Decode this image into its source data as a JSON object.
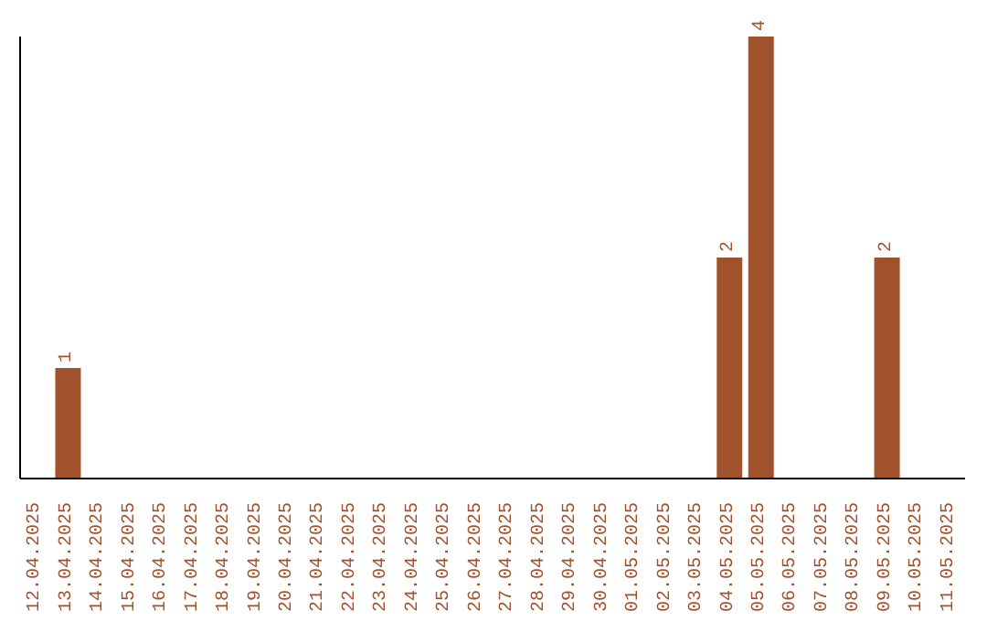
{
  "chart_data": {
    "type": "bar",
    "categories": [
      "12.04.2025",
      "13.04.2025",
      "14.04.2025",
      "15.04.2025",
      "16.04.2025",
      "17.04.2025",
      "18.04.2025",
      "19.04.2025",
      "20.04.2025",
      "21.04.2025",
      "22.04.2025",
      "23.04.2025",
      "24.04.2025",
      "25.04.2025",
      "26.04.2025",
      "27.04.2025",
      "28.04.2025",
      "29.04.2025",
      "30.04.2025",
      "01.05.2025",
      "02.05.2025",
      "03.05.2025",
      "04.05.2025",
      "05.05.2025",
      "06.05.2025",
      "07.05.2025",
      "08.05.2025",
      "09.05.2025",
      "10.05.2025",
      "11.05.2025"
    ],
    "values": [
      0,
      1,
      0,
      0,
      0,
      0,
      0,
      0,
      0,
      0,
      0,
      0,
      0,
      0,
      0,
      0,
      0,
      0,
      0,
      0,
      0,
      0,
      2,
      4,
      0,
      0,
      0,
      2,
      0,
      0
    ],
    "value_labels": [
      null,
      "1",
      null,
      null,
      null,
      null,
      null,
      null,
      null,
      null,
      null,
      null,
      null,
      null,
      null,
      null,
      null,
      null,
      null,
      null,
      null,
      null,
      "2",
      "4",
      null,
      null,
      null,
      "2",
      null,
      null
    ],
    "color": "#a0522d",
    "tick_labels": "x"
  }
}
